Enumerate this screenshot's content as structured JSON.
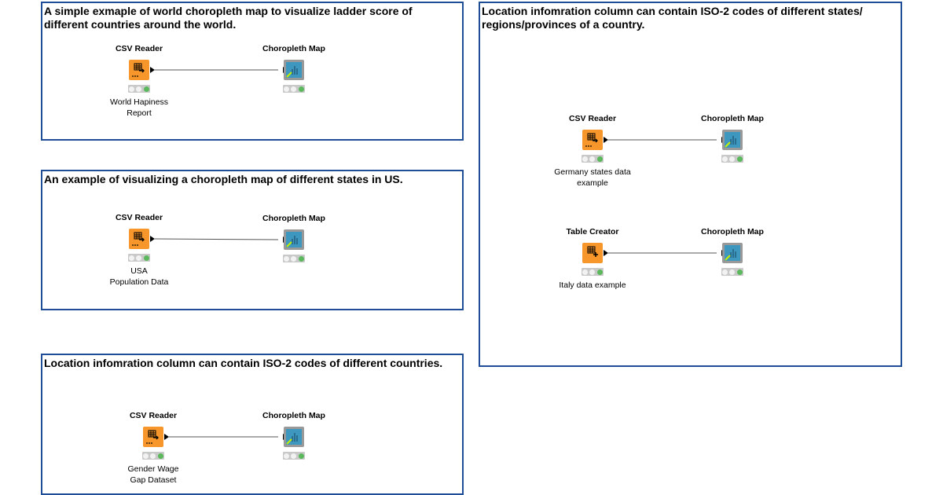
{
  "annotations": [
    {
      "text": "A simple exmaple of world choropleth map to visualize ladder score of different countries around the world."
    },
    {
      "text": "An example of visualizing a choropleth map of different states in US."
    },
    {
      "text": "Location infomration column can contain ISO-2 codes of different countries."
    },
    {
      "text": "Location infomration column can contain ISO-2 codes of different states/ regions/provinces of a country."
    }
  ],
  "nodes": [
    {
      "title": "CSV Reader",
      "label": "World Hapiness\nReport",
      "type": "csv-reader",
      "icon": "table-arrow-icon",
      "status": "executed"
    },
    {
      "title": "Choropleth Map",
      "label": "",
      "type": "view",
      "icon": "bar-chart-icon",
      "status": "executed"
    },
    {
      "title": "CSV Reader",
      "label": "USA\nPopulation Data",
      "type": "csv-reader",
      "icon": "table-arrow-icon",
      "status": "executed"
    },
    {
      "title": "Choropleth Map",
      "label": "",
      "type": "view",
      "icon": "bar-chart-icon",
      "status": "executed"
    },
    {
      "title": "CSV Reader",
      "label": "Gender Wage\nGap Dataset",
      "type": "csv-reader",
      "icon": "table-arrow-icon",
      "status": "executed"
    },
    {
      "title": "Choropleth Map",
      "label": "",
      "type": "view",
      "icon": "bar-chart-icon",
      "status": "executed"
    },
    {
      "title": "CSV Reader",
      "label": "Germany states data example",
      "type": "csv-reader",
      "icon": "table-arrow-icon",
      "status": "executed"
    },
    {
      "title": "Choropleth Map",
      "label": "",
      "type": "view",
      "icon": "bar-chart-icon",
      "status": "executed"
    },
    {
      "title": "Table Creator",
      "label": "Italy data example",
      "type": "table-creator",
      "icon": "table-plus-icon",
      "status": "executed"
    },
    {
      "title": "Choropleth Map",
      "label": "",
      "type": "view",
      "icon": "bar-chart-icon",
      "status": "executed"
    }
  ],
  "connections": [
    [
      0,
      1
    ],
    [
      2,
      3
    ],
    [
      4,
      5
    ],
    [
      6,
      7
    ],
    [
      8,
      9
    ]
  ],
  "colors": {
    "annotation_border": "#1f4e96",
    "source_node": "#f7962b",
    "view_node": "#3d97be",
    "executed": "#5cb85c"
  }
}
